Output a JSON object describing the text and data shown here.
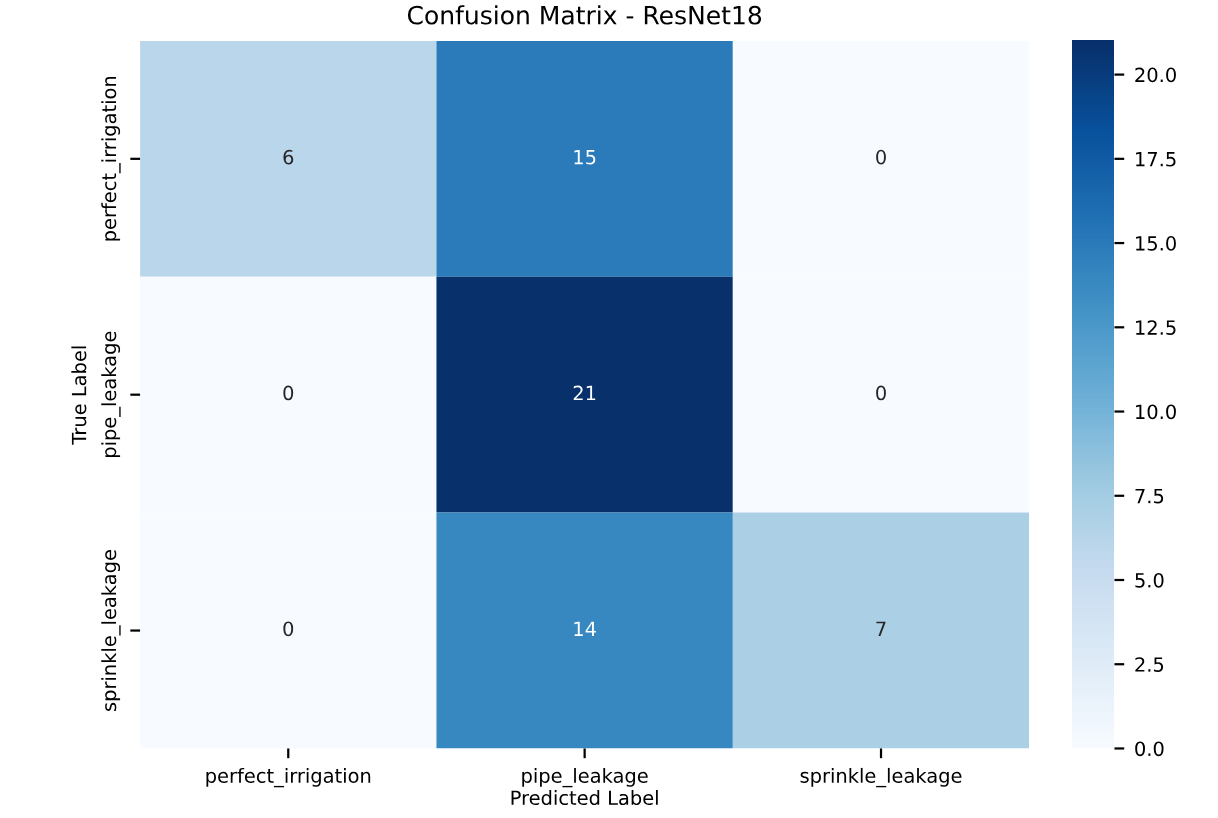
{
  "chart_data": {
    "type": "heatmap",
    "title": "Confusion Matrix - ResNet18",
    "xlabel": "Predicted Label",
    "ylabel": "True Label",
    "categories": [
      "perfect_irrigation",
      "pipe_leakage",
      "sprinkle_leakage"
    ],
    "y_categories": [
      "perfect_irrigation",
      "pipe_leakage",
      "sprinkle_leakage"
    ],
    "cells": [
      [
        6,
        15,
        0
      ],
      [
        0,
        21,
        0
      ],
      [
        0,
        14,
        7
      ]
    ],
    "clim": [
      0,
      21
    ],
    "cticks": [
      {
        "value": 0,
        "label": "0.0"
      },
      {
        "value": 2.5,
        "label": "2.5"
      },
      {
        "value": 5,
        "label": "5.0"
      },
      {
        "value": 7.5,
        "label": "7.5"
      },
      {
        "value": 10,
        "label": "10.0"
      },
      {
        "value": 12.5,
        "label": "12.5"
      },
      {
        "value": 15,
        "label": "15.0"
      },
      {
        "value": 17.5,
        "label": "17.5"
      },
      {
        "value": 20,
        "label": "20.0"
      }
    ],
    "data_labels": true
  }
}
